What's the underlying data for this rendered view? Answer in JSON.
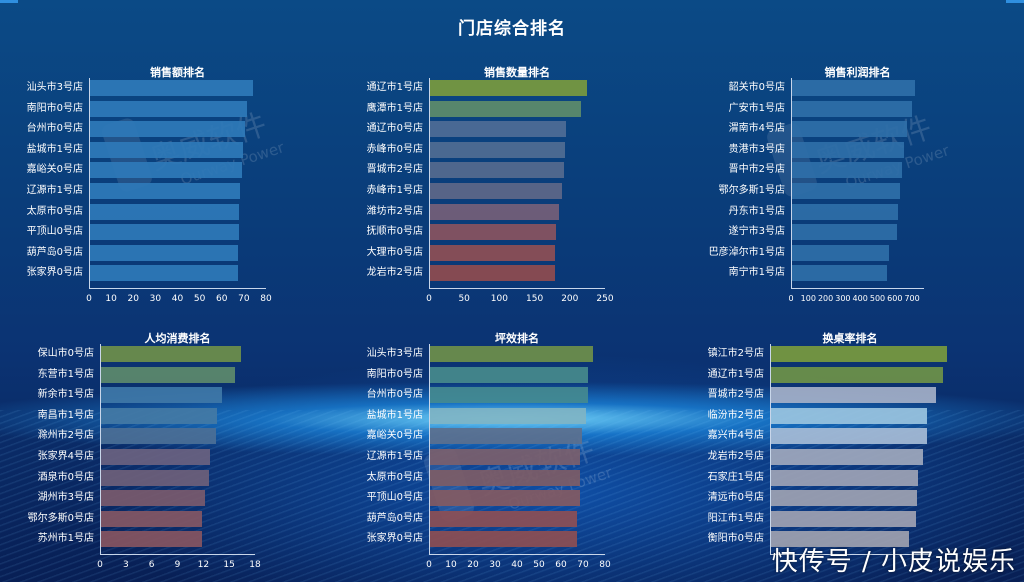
{
  "page": {
    "title": "门店综合排名",
    "footer_watermark": "快传号 / 小皮说娱乐",
    "background_watermark": {
      "brand_cn": "奥威软件",
      "brand_en": "Ourway Power"
    },
    "colors": {
      "background_top": "#0b4a86",
      "background_bottom": "#081f55",
      "axis": "#c8d6ea",
      "text": "#ffffff",
      "accent": "#2f8fe0"
    }
  },
  "chart_data": [
    {
      "id": "sales",
      "type": "bar",
      "orientation": "horizontal",
      "title": "销售额排名",
      "categories": [
        "汕头市3号店",
        "南阳市0号店",
        "台州市0号店",
        "盐城市1号店",
        "嘉峪关0号店",
        "辽源市1号店",
        "太原市0号店",
        "平顶山0号店",
        "葫芦岛0号店",
        "张家界0号店"
      ],
      "values": [
        73.5,
        71,
        70,
        69,
        68.5,
        68,
        67.5,
        67.5,
        67,
        67
      ],
      "xlim": [
        0,
        80
      ],
      "ticks": [
        "0",
        "10",
        "20",
        "30",
        "40",
        "50",
        "60",
        "70",
        "80"
      ],
      "bar_colors": [
        "#2f7ab8",
        "#2f7ab8",
        "#2f7ab8",
        "#2f7ab8",
        "#2f7ab8",
        "#2f7ab8",
        "#2f7ab8",
        "#2f7ab8",
        "#2f7ab8",
        "#2f7ab8"
      ],
      "grid": false,
      "legend": "none"
    },
    {
      "id": "quantity",
      "type": "bar",
      "orientation": "horizontal",
      "title": "销售数量排名",
      "categories": [
        "通辽市1号店",
        "鹰潭市1号店",
        "通辽市0号店",
        "赤峰市0号店",
        "晋城市2号店",
        "赤峰市1号店",
        "潍坊市2号店",
        "抚顺市0号店",
        "大理市0号店",
        "龙岩市2号店"
      ],
      "values": [
        223,
        214,
        193,
        192,
        190,
        188,
        183,
        179,
        178,
        177
      ],
      "xlim": [
        0,
        250
      ],
      "ticks": [
        "0",
        "50",
        "100",
        "150",
        "200",
        "250"
      ],
      "bar_colors": [
        "#7a9a3e",
        "#5e8c6a",
        "#4f6c96",
        "#506c93",
        "#566a8e",
        "#5e6788",
        "#755f78",
        "#8a5460",
        "#8f4f55",
        "#904c4f"
      ],
      "grid": false,
      "legend": "none"
    },
    {
      "id": "profit",
      "type": "bar",
      "orientation": "horizontal",
      "title": "销售利润排名",
      "categories": [
        "韶关市0号店",
        "广安市1号店",
        "渭南市4号店",
        "贵港市3号店",
        "晋中市2号店",
        "鄂尔多斯1号店",
        "丹东市1号店",
        "遂宁市3号店",
        "巴彦淖尔市1号店",
        "南宁市1号店"
      ],
      "values": [
        710,
        692,
        665,
        650,
        635,
        625,
        612,
        607,
        560,
        550
      ],
      "xlim": [
        0,
        770
      ],
      "ticks": [
        "0",
        "100",
        "200",
        "300",
        "400",
        "500",
        "600",
        "700"
      ],
      "bar_colors": [
        "#2f6fa8",
        "#2f6fa8",
        "#2f6fa8",
        "#2f6fa8",
        "#2f6fa8",
        "#2f6fa8",
        "#2f6fa8",
        "#2f6fa8",
        "#2f6fa8",
        "#2f6fa8"
      ],
      "grid": false,
      "legend": "none"
    },
    {
      "id": "per_capita",
      "type": "bar",
      "orientation": "horizontal",
      "title": "人均消费排名",
      "categories": [
        "保山市0号店",
        "东营市1号店",
        "新余市1号店",
        "南昌市1号店",
        "滁州市2号店",
        "张家界4号店",
        "酒泉市0号店",
        "湖州市3号店",
        "鄂尔多斯0号店",
        "苏州市1号店"
      ],
      "values": [
        16.3,
        15.6,
        14.0,
        13.5,
        13.3,
        12.6,
        12.5,
        12.1,
        11.7,
        11.7
      ],
      "xlim": [
        0,
        18
      ],
      "ticks": [
        "0",
        "3",
        "6",
        "9",
        "12",
        "15",
        "18"
      ],
      "bar_colors": [
        "#6f8f4a",
        "#5d8a6b",
        "#3f78a8",
        "#4379a5",
        "#4b6f96",
        "#6a6280",
        "#6e6079",
        "#7a5a6c",
        "#845764",
        "#875561"
      ],
      "grid": false,
      "legend": "none"
    },
    {
      "id": "efficiency",
      "type": "bar",
      "orientation": "horizontal",
      "title": "坪效排名",
      "categories": [
        "汕头市3号店",
        "南阳市0号店",
        "台州市0号店",
        "盐城市1号店",
        "嘉峪关0号店",
        "辽源市1号店",
        "太原市0号店",
        "平顶山0号店",
        "葫芦岛0号店",
        "张家界0号店"
      ],
      "values": [
        74,
        72,
        72,
        71,
        69,
        68,
        68,
        68,
        67,
        67
      ],
      "xlim": [
        0,
        80
      ],
      "ticks": [
        "0",
        "10",
        "20",
        "30",
        "40",
        "50",
        "60",
        "70",
        "80"
      ],
      "bar_colors": [
        "#6f8f4a",
        "#478a8c",
        "#448a90",
        "#7fb4c4",
        "#5c708e",
        "#7b5f6c",
        "#7d5c66",
        "#835a62",
        "#8c4f55",
        "#8d4e52"
      ],
      "grid": false,
      "legend": "none"
    },
    {
      "id": "turnover",
      "type": "bar",
      "orientation": "horizontal",
      "title": "换桌率排名",
      "categories": [
        "镇江市2号店",
        "通辽市1号店",
        "晋城市2号店",
        "临汾市2号店",
        "嘉兴市4号店",
        "龙岩市2号店",
        "石家庄1号店",
        "清远市0号店",
        "阳江市1号店",
        "衡阳市0号店"
      ],
      "values": [
        88,
        86,
        82.5,
        78,
        78,
        76,
        73.5,
        73,
        72.5,
        69
      ],
      "xlim": [
        0,
        100
      ],
      "ticks": [],
      "bar_colors": [
        "#7a9a3e",
        "#6f9248",
        "#a4b0c8",
        "#9ac4e0",
        "#a6bcd6",
        "#a0a8bd",
        "#9ea3b5",
        "#9ea2b2",
        "#9fa2b2",
        "#9fa2b0"
      ],
      "grid": false,
      "legend": "none"
    }
  ]
}
